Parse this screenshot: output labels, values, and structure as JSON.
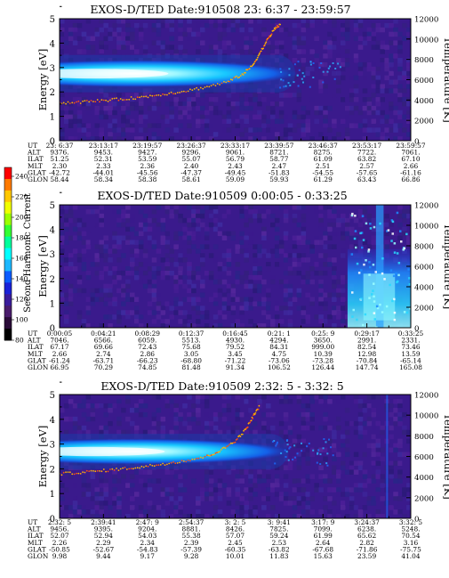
{
  "figure": {
    "colorbar": {
      "label": "Second Harmonic Current",
      "ticks": [
        "240",
        "220",
        "200",
        "180",
        "160",
        "140",
        "120",
        "100",
        "80"
      ],
      "colors": [
        "#ff0000",
        "#ff7a00",
        "#ffc800",
        "#f0ff00",
        "#9cff00",
        "#33ff33",
        "#00ff9c",
        "#00ffff",
        "#1cb8ff",
        "#0c5cff",
        "#1a22d8",
        "#3a1c9c",
        "#4a1c6c",
        "#2a0c38",
        "#000000"
      ]
    },
    "ephemeris_labels": [
      "UT",
      "ALT",
      "ILAT",
      "MLT",
      "GLAT",
      "GLON"
    ]
  },
  "chart_data": [
    {
      "type": "heatmap",
      "title": "EXOS-D/TED  Date:910508  23: 6:37 - 23:59:57",
      "ylabel": "Energy [eV]",
      "y2label": "Temperature [K]",
      "ylim": [
        0,
        5
      ],
      "y2lim": [
        0,
        12000
      ],
      "yticks": [
        "0",
        "1",
        "2",
        "3",
        "4",
        "5"
      ],
      "y2ticks": [
        "0",
        "2000",
        "4000",
        "6000",
        "8000",
        "10000",
        "12000"
      ],
      "band": {
        "energy_center": 2.75,
        "energy_halfwidth": 0.45,
        "extent_fraction": 0.62
      },
      "temperature_points": [
        [
          0.0,
          3700
        ],
        [
          0.06,
          3800
        ],
        [
          0.12,
          3950
        ],
        [
          0.18,
          4100
        ],
        [
          0.24,
          4300
        ],
        [
          0.3,
          4600
        ],
        [
          0.36,
          4900
        ],
        [
          0.42,
          5300
        ],
        [
          0.48,
          5800
        ],
        [
          0.52,
          6500
        ],
        [
          0.55,
          7400
        ],
        [
          0.57,
          8600
        ],
        [
          0.59,
          9800
        ],
        [
          0.61,
          10900
        ],
        [
          0.63,
          11500
        ]
      ],
      "ephemeris": {
        "UT": [
          "23: 6:37",
          "23:13:17",
          "23:19:57",
          "23:26:37",
          "23:33:17",
          "23:39:57",
          "23:46:37",
          "23:53:17",
          "23:59:57"
        ],
        "ALT": [
          "9376.",
          "9453.",
          "9427.",
          "9296.",
          "9061.",
          "8721.",
          "8275.",
          "7722.",
          "7061."
        ],
        "ILAT": [
          "51.25",
          "52.31",
          "53.59",
          "55.07",
          "56.79",
          "58.77",
          "61.09",
          "63.82",
          "67.10"
        ],
        "MLT": [
          "2.30",
          "2.33",
          "2.36",
          "2.40",
          "2.43",
          "2.47",
          "2.51",
          "2.57",
          "2.66"
        ],
        "GLAT": [
          "-42.72",
          "-44.01",
          "-45.56",
          "-47.37",
          "-49.45",
          "-51.83",
          "-54.55",
          "-57.65",
          "-61.16"
        ],
        "GLON": [
          "58.44",
          "58.34",
          "58.38",
          "58.61",
          "59.09",
          "59.93",
          "61.29",
          "63.43",
          "66.86"
        ]
      }
    },
    {
      "type": "heatmap",
      "title": "EXOS-D/TED   Date:910509   0:00:05 - 0:33:25",
      "ylabel": "Energy [eV]",
      "y2label": "Temperature [K]",
      "ylim": [
        0,
        5
      ],
      "y2lim": [
        0,
        12000
      ],
      "yticks": [
        "0",
        "1",
        "2",
        "3",
        "4",
        "5"
      ],
      "y2ticks": [
        "0",
        "2000",
        "4000",
        "6000",
        "8000",
        "10000",
        "12000"
      ],
      "burst": {
        "start_fraction": 0.82,
        "energy_top": 3.2
      },
      "ephemeris": {
        "UT": [
          "0:00:05",
          "0:04:21",
          "0:08:29",
          "0:12:37",
          "0:16:45",
          "0:21: 1",
          "0:25: 9",
          "0:29:17",
          "0:33:25"
        ],
        "ALT": [
          "7046.",
          "6566.",
          "6059.",
          "5513.",
          "4930.",
          "4294.",
          "3650.",
          "2991.",
          "2331."
        ],
        "ILAT": [
          "67.17",
          "69.66",
          "72.43",
          "75.68",
          "79.52",
          "84.31",
          "999.00",
          "82.54",
          "73.46"
        ],
        "MLT": [
          "2.66",
          "2.74",
          "2.86",
          "3.05",
          "3.45",
          "4.75",
          "10.39",
          "12.98",
          "13.59"
        ],
        "GLAT": [
          "-61.24",
          "-63.71",
          "-66.23",
          "-68.80",
          "-71.22",
          "-73.06",
          "-73.28",
          "-70.84",
          "-65.14"
        ],
        "GLON": [
          "66.95",
          "70.29",
          "74.85",
          "81.48",
          "91.34",
          "106.52",
          "126.44",
          "147.74",
          "165.08"
        ]
      }
    },
    {
      "type": "heatmap",
      "title": "EXOS-D/TED   Date:910509   2:32: 5 - 3:32: 5",
      "ylabel": "Energy [eV]",
      "y2label": "Temperature [K]",
      "ylim": [
        0,
        5
      ],
      "y2lim": [
        0,
        12000
      ],
      "yticks": [
        "0",
        "1",
        "2",
        "3",
        "4",
        "5"
      ],
      "y2ticks": [
        "0",
        "2000",
        "4000",
        "6000",
        "8000",
        "10000",
        "12000"
      ],
      "band": {
        "energy_center": 2.7,
        "energy_halfwidth": 0.42,
        "extent_fraction": 0.6
      },
      "temperature_points": [
        [
          0.0,
          4300
        ],
        [
          0.06,
          4450
        ],
        [
          0.12,
          4600
        ],
        [
          0.18,
          4800
        ],
        [
          0.24,
          5000
        ],
        [
          0.3,
          5300
        ],
        [
          0.36,
          5600
        ],
        [
          0.42,
          6000
        ],
        [
          0.46,
          6600
        ],
        [
          0.5,
          7500
        ],
        [
          0.53,
          8600
        ],
        [
          0.55,
          9800
        ],
        [
          0.57,
          10900
        ]
      ],
      "ephemeris": {
        "UT": [
          "2:32: 5",
          "2:39:41",
          "2:47: 9",
          "2:54:37",
          "3: 2: 5",
          "3: 9:41",
          "3:17: 9",
          "3:24:37",
          "3:32: 5"
        ],
        "ALT": [
          "9456.",
          "9395.",
          "9204.",
          "8881.",
          "8426.",
          "7825.",
          "7099.",
          "6238.",
          "5248."
        ],
        "ILAT": [
          "52.07",
          "52.94",
          "54.03",
          "55.38",
          "57.07",
          "59.24",
          "61.99",
          "65.62",
          "70.54"
        ],
        "MLT": [
          "2.26",
          "2.29",
          "2.34",
          "2.39",
          "2.45",
          "2.53",
          "2.64",
          "2.82",
          "3.16"
        ],
        "GLAT": [
          "-50.85",
          "-52.67",
          "-54.83",
          "-57.39",
          "-60.35",
          "-63.82",
          "-67.68",
          "-71.86",
          "-75.75"
        ],
        "GLON": [
          "9.98",
          "9.44",
          "9.17",
          "9.28",
          "10.01",
          "11.83",
          "15.63",
          "23.59",
          "41.04"
        ]
      }
    }
  ]
}
